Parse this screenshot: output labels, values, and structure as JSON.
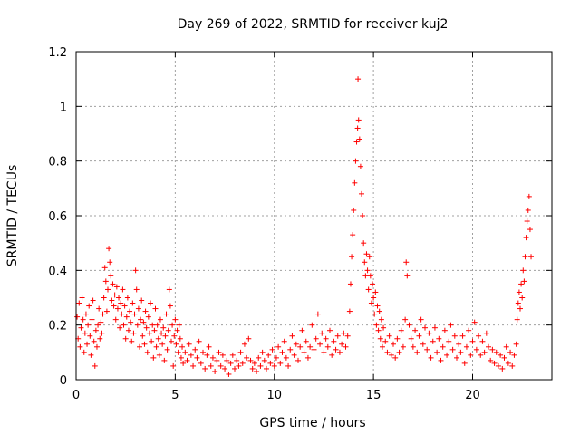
{
  "chart_data": {
    "type": "scatter",
    "title": "Day 269 of 2022, SRMTID for receiver kuj2",
    "xlabel": "GPS time / hours",
    "ylabel": "SRMTID / TECUs",
    "xlim": [
      0,
      24
    ],
    "ylim": [
      0,
      1.2
    ],
    "x_ticks": [
      0,
      5,
      10,
      15,
      20
    ],
    "x_tick_labels": [
      "0",
      "5",
      "10",
      "15",
      "20"
    ],
    "y_ticks": [
      0,
      0.2,
      0.4,
      0.6,
      0.8,
      1.0,
      1.2
    ],
    "y_tick_labels": [
      "0",
      "0.2",
      "0.4",
      "0.6",
      "0.8",
      "1",
      "1.2"
    ],
    "grid": true,
    "marker": "plus",
    "color": "#ff0000",
    "series": [
      {
        "name": "SRMTID",
        "points": [
          [
            0.05,
            0.23
          ],
          [
            0.1,
            0.15
          ],
          [
            0.15,
            0.28
          ],
          [
            0.2,
            0.12
          ],
          [
            0.25,
            0.19
          ],
          [
            0.3,
            0.3
          ],
          [
            0.35,
            0.22
          ],
          [
            0.4,
            0.1
          ],
          [
            0.45,
            0.17
          ],
          [
            0.5,
            0.24
          ],
          [
            0.55,
            0.13
          ],
          [
            0.6,
            0.2
          ],
          [
            0.65,
            0.27
          ],
          [
            0.7,
            0.16
          ],
          [
            0.75,
            0.09
          ],
          [
            0.8,
            0.22
          ],
          [
            0.85,
            0.29
          ],
          [
            0.9,
            0.14
          ],
          [
            0.95,
            0.05
          ],
          [
            1.0,
            0.18
          ],
          [
            1.05,
            0.12
          ],
          [
            1.1,
            0.2
          ],
          [
            1.15,
            0.26
          ],
          [
            1.2,
            0.15
          ],
          [
            1.25,
            0.21
          ],
          [
            1.3,
            0.17
          ],
          [
            1.35,
            0.24
          ],
          [
            1.4,
            0.3
          ],
          [
            1.45,
            0.41
          ],
          [
            1.5,
            0.36
          ],
          [
            1.55,
            0.25
          ],
          [
            1.6,
            0.33
          ],
          [
            1.65,
            0.48
          ],
          [
            1.7,
            0.43
          ],
          [
            1.75,
            0.38
          ],
          [
            1.8,
            0.29
          ],
          [
            1.85,
            0.35
          ],
          [
            1.9,
            0.27
          ],
          [
            1.95,
            0.31
          ],
          [
            2.0,
            0.22
          ],
          [
            2.05,
            0.34
          ],
          [
            2.1,
            0.26
          ],
          [
            2.15,
            0.3
          ],
          [
            2.2,
            0.19
          ],
          [
            2.25,
            0.28
          ],
          [
            2.3,
            0.24
          ],
          [
            2.35,
            0.33
          ],
          [
            2.4,
            0.2
          ],
          [
            2.45,
            0.27
          ],
          [
            2.5,
            0.15
          ],
          [
            2.55,
            0.23
          ],
          [
            2.6,
            0.3
          ],
          [
            2.65,
            0.18
          ],
          [
            2.7,
            0.25
          ],
          [
            2.75,
            0.21
          ],
          [
            2.8,
            0.14
          ],
          [
            2.85,
            0.28
          ],
          [
            2.9,
            0.17
          ],
          [
            2.95,
            0.24
          ],
          [
            3.0,
            0.4
          ],
          [
            3.05,
            0.33
          ],
          [
            3.1,
            0.2
          ],
          [
            3.15,
            0.26
          ],
          [
            3.2,
            0.12
          ],
          [
            3.25,
            0.22
          ],
          [
            3.3,
            0.29
          ],
          [
            3.35,
            0.16
          ],
          [
            3.4,
            0.21
          ],
          [
            3.45,
            0.13
          ],
          [
            3.5,
            0.25
          ],
          [
            3.55,
            0.19
          ],
          [
            3.6,
            0.1
          ],
          [
            3.65,
            0.23
          ],
          [
            3.7,
            0.17
          ],
          [
            3.75,
            0.28
          ],
          [
            3.8,
            0.14
          ],
          [
            3.85,
            0.2
          ],
          [
            3.9,
            0.08
          ],
          [
            3.95,
            0.18
          ],
          [
            4.0,
            0.26
          ],
          [
            4.05,
            0.12
          ],
          [
            4.1,
            0.2
          ],
          [
            4.15,
            0.15
          ],
          [
            4.2,
            0.09
          ],
          [
            4.25,
            0.22
          ],
          [
            4.3,
            0.17
          ],
          [
            4.35,
            0.13
          ],
          [
            4.4,
            0.19
          ],
          [
            4.45,
            0.07
          ],
          [
            4.5,
            0.16
          ],
          [
            4.55,
            0.24
          ],
          [
            4.6,
            0.11
          ],
          [
            4.65,
            0.18
          ],
          [
            4.7,
            0.33
          ],
          [
            4.75,
            0.27
          ],
          [
            4.8,
            0.14
          ],
          [
            4.85,
            0.2
          ],
          [
            4.9,
            0.05
          ],
          [
            4.95,
            0.16
          ],
          [
            5.0,
            0.22
          ],
          [
            5.05,
            0.13
          ],
          [
            5.1,
            0.18
          ],
          [
            5.15,
            0.1
          ],
          [
            5.2,
            0.2
          ],
          [
            5.25,
            0.15
          ],
          [
            5.3,
            0.08
          ],
          [
            5.35,
            0.12
          ],
          [
            5.4,
            0.06
          ],
          [
            5.5,
            0.1
          ],
          [
            5.6,
            0.07
          ],
          [
            5.7,
            0.13
          ],
          [
            5.8,
            0.09
          ],
          [
            5.9,
            0.05
          ],
          [
            6.0,
            0.11
          ],
          [
            6.1,
            0.08
          ],
          [
            6.2,
            0.14
          ],
          [
            6.3,
            0.06
          ],
          [
            6.4,
            0.1
          ],
          [
            6.5,
            0.04
          ],
          [
            6.6,
            0.09
          ],
          [
            6.7,
            0.12
          ],
          [
            6.8,
            0.05
          ],
          [
            6.9,
            0.08
          ],
          [
            7.0,
            0.03
          ],
          [
            7.1,
            0.07
          ],
          [
            7.2,
            0.1
          ],
          [
            7.3,
            0.05
          ],
          [
            7.4,
            0.09
          ],
          [
            7.5,
            0.04
          ],
          [
            7.6,
            0.07
          ],
          [
            7.7,
            0.02
          ],
          [
            7.8,
            0.06
          ],
          [
            7.9,
            0.09
          ],
          [
            8.0,
            0.04
          ],
          [
            8.1,
            0.07
          ],
          [
            8.2,
            0.05
          ],
          [
            8.3,
            0.1
          ],
          [
            8.4,
            0.06
          ],
          [
            8.5,
            0.13
          ],
          [
            8.6,
            0.08
          ],
          [
            8.7,
            0.15
          ],
          [
            8.8,
            0.07
          ],
          [
            8.9,
            0.04
          ],
          [
            9.0,
            0.06
          ],
          [
            9.1,
            0.03
          ],
          [
            9.2,
            0.08
          ],
          [
            9.3,
            0.05
          ],
          [
            9.4,
            0.1
          ],
          [
            9.5,
            0.07
          ],
          [
            9.6,
            0.04
          ],
          [
            9.7,
            0.09
          ],
          [
            9.8,
            0.06
          ],
          [
            9.9,
            0.11
          ],
          [
            10.0,
            0.05
          ],
          [
            10.1,
            0.08
          ],
          [
            10.2,
            0.12
          ],
          [
            10.3,
            0.06
          ],
          [
            10.4,
            0.1
          ],
          [
            10.5,
            0.14
          ],
          [
            10.6,
            0.08
          ],
          [
            10.7,
            0.05
          ],
          [
            10.8,
            0.11
          ],
          [
            10.9,
            0.16
          ],
          [
            11.0,
            0.09
          ],
          [
            11.1,
            0.13
          ],
          [
            11.2,
            0.07
          ],
          [
            11.3,
            0.12
          ],
          [
            11.4,
            0.18
          ],
          [
            11.5,
            0.1
          ],
          [
            11.6,
            0.14
          ],
          [
            11.7,
            0.08
          ],
          [
            11.8,
            0.12
          ],
          [
            11.9,
            0.2
          ],
          [
            12.0,
            0.11
          ],
          [
            12.1,
            0.15
          ],
          [
            12.2,
            0.24
          ],
          [
            12.3,
            0.13
          ],
          [
            12.4,
            0.17
          ],
          [
            12.5,
            0.1
          ],
          [
            12.6,
            0.15
          ],
          [
            12.7,
            0.12
          ],
          [
            12.8,
            0.18
          ],
          [
            12.9,
            0.09
          ],
          [
            13.0,
            0.14
          ],
          [
            13.1,
            0.11
          ],
          [
            13.2,
            0.16
          ],
          [
            13.3,
            0.1
          ],
          [
            13.4,
            0.13
          ],
          [
            13.5,
            0.17
          ],
          [
            13.6,
            0.12
          ],
          [
            13.7,
            0.16
          ],
          [
            13.8,
            0.25
          ],
          [
            13.85,
            0.35
          ],
          [
            13.9,
            0.45
          ],
          [
            13.95,
            0.53
          ],
          [
            14.0,
            0.62
          ],
          [
            14.05,
            0.72
          ],
          [
            14.1,
            0.8
          ],
          [
            14.15,
            0.87
          ],
          [
            14.2,
            0.92
          ],
          [
            14.22,
            1.1
          ],
          [
            14.25,
            0.95
          ],
          [
            14.3,
            0.88
          ],
          [
            14.35,
            0.78
          ],
          [
            14.4,
            0.68
          ],
          [
            14.45,
            0.6
          ],
          [
            14.5,
            0.5
          ],
          [
            14.55,
            0.43
          ],
          [
            14.6,
            0.38
          ],
          [
            14.65,
            0.46
          ],
          [
            14.7,
            0.4
          ],
          [
            14.75,
            0.33
          ],
          [
            14.8,
            0.45
          ],
          [
            14.85,
            0.38
          ],
          [
            14.9,
            0.28
          ],
          [
            14.95,
            0.35
          ],
          [
            15.0,
            0.3
          ],
          [
            15.05,
            0.24
          ],
          [
            15.1,
            0.32
          ],
          [
            15.15,
            0.2
          ],
          [
            15.2,
            0.27
          ],
          [
            15.25,
            0.18
          ],
          [
            15.3,
            0.25
          ],
          [
            15.35,
            0.15
          ],
          [
            15.4,
            0.22
          ],
          [
            15.45,
            0.12
          ],
          [
            15.5,
            0.19
          ],
          [
            15.6,
            0.14
          ],
          [
            15.7,
            0.1
          ],
          [
            15.8,
            0.16
          ],
          [
            15.9,
            0.09
          ],
          [
            16.0,
            0.13
          ],
          [
            16.1,
            0.08
          ],
          [
            16.2,
            0.15
          ],
          [
            16.3,
            0.1
          ],
          [
            16.4,
            0.18
          ],
          [
            16.5,
            0.12
          ],
          [
            16.6,
            0.22
          ],
          [
            16.65,
            0.43
          ],
          [
            16.7,
            0.38
          ],
          [
            16.8,
            0.2
          ],
          [
            16.9,
            0.15
          ],
          [
            17.0,
            0.12
          ],
          [
            17.1,
            0.18
          ],
          [
            17.2,
            0.1
          ],
          [
            17.3,
            0.16
          ],
          [
            17.4,
            0.22
          ],
          [
            17.5,
            0.13
          ],
          [
            17.6,
            0.19
          ],
          [
            17.7,
            0.11
          ],
          [
            17.8,
            0.17
          ],
          [
            17.9,
            0.08
          ],
          [
            18.0,
            0.14
          ],
          [
            18.1,
            0.19
          ],
          [
            18.2,
            0.1
          ],
          [
            18.3,
            0.15
          ],
          [
            18.4,
            0.07
          ],
          [
            18.5,
            0.12
          ],
          [
            18.6,
            0.18
          ],
          [
            18.7,
            0.09
          ],
          [
            18.8,
            0.14
          ],
          [
            18.9,
            0.2
          ],
          [
            19.0,
            0.11
          ],
          [
            19.1,
            0.16
          ],
          [
            19.2,
            0.08
          ],
          [
            19.3,
            0.13
          ],
          [
            19.4,
            0.1
          ],
          [
            19.5,
            0.16
          ],
          [
            19.6,
            0.06
          ],
          [
            19.7,
            0.12
          ],
          [
            19.8,
            0.18
          ],
          [
            19.9,
            0.09
          ],
          [
            20.0,
            0.14
          ],
          [
            20.1,
            0.21
          ],
          [
            20.2,
            0.11
          ],
          [
            20.3,
            0.16
          ],
          [
            20.4,
            0.09
          ],
          [
            20.5,
            0.14
          ],
          [
            20.6,
            0.1
          ],
          [
            20.7,
            0.17
          ],
          [
            20.8,
            0.12
          ],
          [
            20.9,
            0.07
          ],
          [
            21.0,
            0.11
          ],
          [
            21.1,
            0.06
          ],
          [
            21.2,
            0.1
          ],
          [
            21.3,
            0.05
          ],
          [
            21.4,
            0.09
          ],
          [
            21.5,
            0.04
          ],
          [
            21.6,
            0.08
          ],
          [
            21.7,
            0.12
          ],
          [
            21.8,
            0.06
          ],
          [
            21.9,
            0.1
          ],
          [
            22.0,
            0.05
          ],
          [
            22.1,
            0.09
          ],
          [
            22.2,
            0.13
          ],
          [
            22.25,
            0.22
          ],
          [
            22.3,
            0.28
          ],
          [
            22.35,
            0.32
          ],
          [
            22.4,
            0.26
          ],
          [
            22.45,
            0.35
          ],
          [
            22.5,
            0.3
          ],
          [
            22.55,
            0.4
          ],
          [
            22.6,
            0.36
          ],
          [
            22.65,
            0.45
          ],
          [
            22.7,
            0.52
          ],
          [
            22.75,
            0.58
          ],
          [
            22.8,
            0.62
          ],
          [
            22.85,
            0.67
          ],
          [
            22.9,
            0.55
          ],
          [
            22.95,
            0.45
          ]
        ]
      }
    ]
  }
}
